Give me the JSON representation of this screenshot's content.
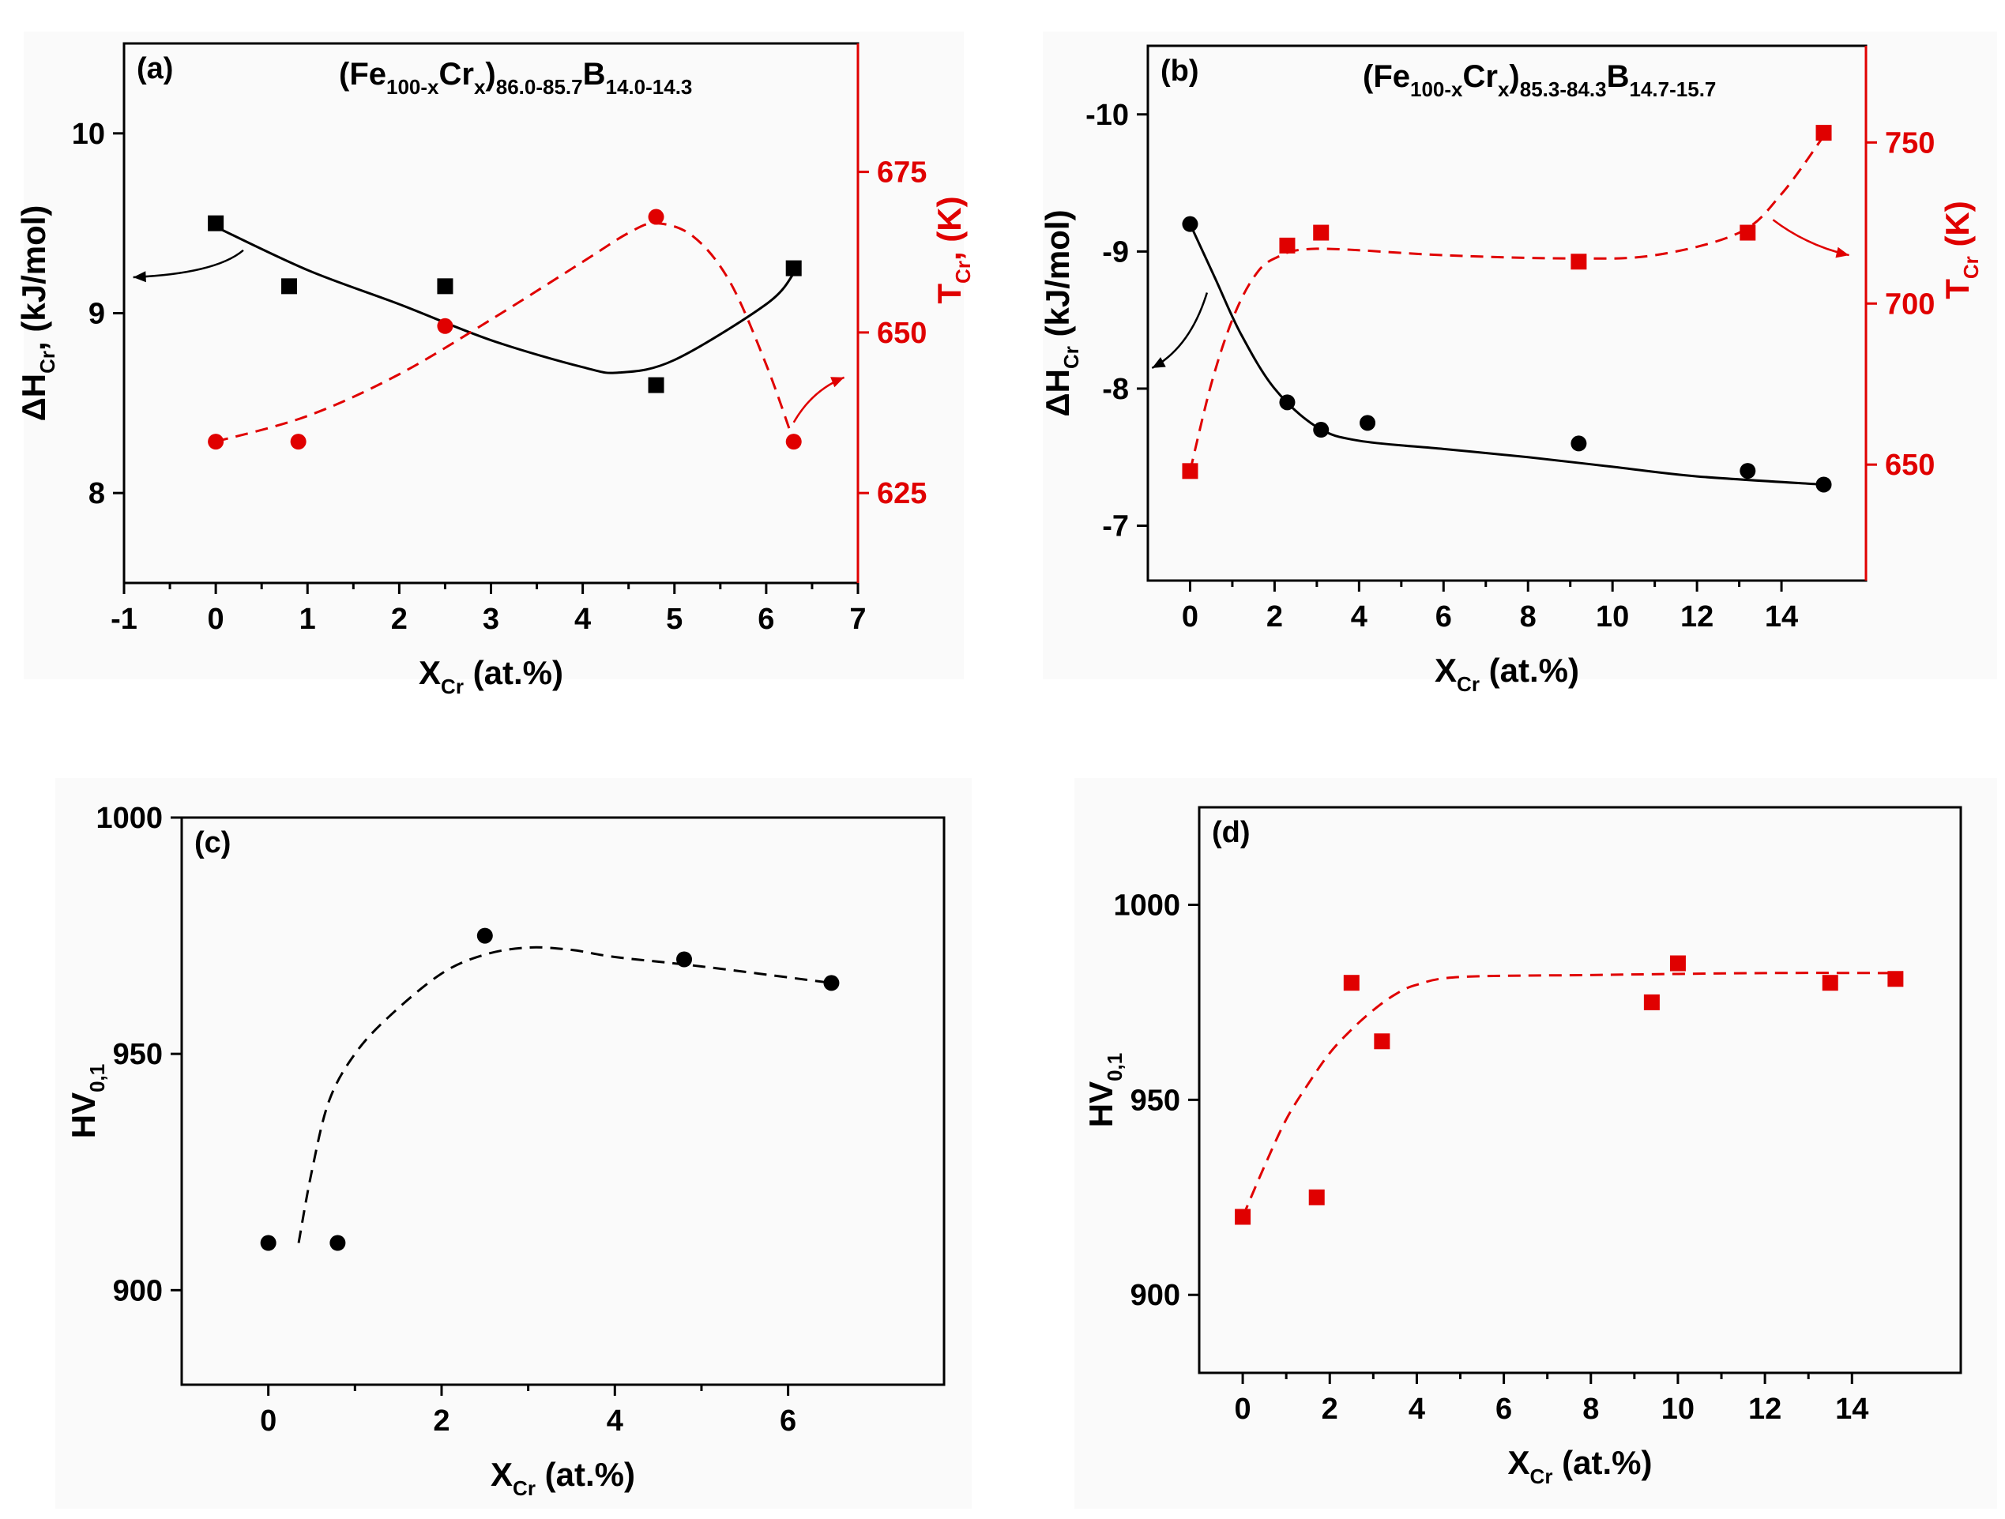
{
  "figure_label": "Four-panel figure: mixing enthalpy, Curie temperature and microhardness versus Cr content",
  "chart_data": [
    {
      "id": "a",
      "type": "scatter",
      "panel_label": "(a)",
      "formula": {
        "base": "(Fe",
        "sub1": "100-x",
        "el": "Cr",
        "sub2": "x",
        "close": ")",
        "sub3": "86.0-85.7",
        "b": "B",
        "sub4": "14.0-14.3"
      },
      "xlabel": "X",
      "xlabel_sub": "Cr",
      "xlabel_unit": " (at.%)",
      "xlim": [
        -1,
        7
      ],
      "xticks": [
        -1,
        0,
        1,
        2,
        3,
        4,
        5,
        6,
        7
      ],
      "ylim": [
        7.5,
        10.5
      ],
      "yticks": [
        8,
        9,
        10
      ],
      "ylabel": "ΔH",
      "ylabel_sub": "Cr",
      "ylabel_unit": ", (kJ/mol)",
      "y2lim": [
        611,
        695
      ],
      "y2ticks": [
        625,
        650,
        675
      ],
      "y2label": "T",
      "y2label_sub": "Cr",
      "y2label_unit": ", (K)",
      "series": [
        {
          "name": "ΔH_Cr",
          "axis": "left",
          "color": "#000000",
          "marker": "square",
          "x": [
            0,
            0.8,
            2.5,
            4.8,
            6.3
          ],
          "y": [
            9.5,
            9.15,
            9.15,
            8.6,
            9.25
          ],
          "fit": {
            "style": "solid",
            "x": [
              0,
              1,
              2,
              3,
              4,
              4.4,
              5,
              6,
              6.3
            ],
            "y": [
              9.48,
              9.24,
              9.05,
              8.85,
              8.7,
              8.67,
              8.74,
              9.05,
              9.22
            ]
          }
        },
        {
          "name": "T_Cr",
          "axis": "right",
          "color": "#e00000",
          "marker": "circle",
          "x": [
            0,
            0.9,
            2.5,
            4.8,
            6.3
          ],
          "y": [
            633,
            633,
            651,
            668,
            633
          ],
          "fit": {
            "style": "dashed",
            "x": [
              0,
              1,
              2,
              3,
              4,
              4.5,
              4.8,
              5.2,
              5.6,
              6,
              6.3
            ],
            "y": [
              633,
              637,
              643.5,
              652,
              661,
              665.5,
              667,
              665,
              658,
              645,
              633
            ]
          }
        }
      ],
      "arrows": [
        {
          "points": [
            [
              0.3,
              9.35
            ],
            [
              0.0,
              9.22
            ],
            [
              -0.9,
              9.2
            ]
          ],
          "axis": "left",
          "color": "#000000"
        },
        {
          "points": [
            [
              6.3,
              636
            ],
            [
              6.5,
              641
            ],
            [
              6.85,
              643
            ]
          ],
          "axis": "right",
          "color": "#e00000"
        }
      ]
    },
    {
      "id": "b",
      "type": "scatter",
      "panel_label": "(b)",
      "formula": {
        "base": "(Fe",
        "sub1": "100-x",
        "el": "Cr",
        "sub2": "x",
        "close": ")",
        "sub3": "85.3-84.3",
        "b": "B",
        "sub4": "14.7-15.7"
      },
      "xlabel": "X",
      "xlabel_sub": "Cr",
      "xlabel_unit": " (at.%)",
      "xlim": [
        -1,
        16
      ],
      "xticks": [
        0,
        2,
        4,
        6,
        8,
        10,
        12,
        14
      ],
      "ylim": [
        -6.6,
        -10.5
      ],
      "yticks": [
        -7,
        -8,
        -9,
        -10
      ],
      "ylabel": "ΔH",
      "ylabel_sub": "Cr",
      "ylabel_unit": " (kJ/mol)",
      "y2lim": [
        614,
        780
      ],
      "y2ticks": [
        650,
        700,
        750
      ],
      "y2label": "T",
      "y2label_sub": "Cr",
      "y2label_unit": " (K)",
      "series": [
        {
          "name": "ΔH_Cr",
          "axis": "left",
          "color": "#000000",
          "marker": "circle",
          "x": [
            0,
            2.3,
            3.1,
            4.2,
            9.2,
            13.2,
            15
          ],
          "y": [
            -9.2,
            -7.9,
            -7.7,
            -7.75,
            -7.6,
            -7.4,
            -7.3
          ],
          "fit": {
            "style": "solid",
            "x": [
              0,
              0.6,
              1.2,
              2,
              3,
              4,
              6,
              8,
              10,
              12,
              15
            ],
            "y": [
              -9.2,
              -8.8,
              -8.4,
              -8.0,
              -7.72,
              -7.62,
              -7.56,
              -7.5,
              -7.43,
              -7.36,
              -7.3
            ]
          }
        },
        {
          "name": "T_Cr",
          "axis": "right",
          "color": "#e00000",
          "marker": "square",
          "x": [
            0,
            2.3,
            3.1,
            9.2,
            13.2,
            15
          ],
          "y": [
            648,
            718,
            722,
            713,
            722,
            753
          ],
          "fit": {
            "style": "dashed",
            "x": [
              0,
              0.5,
              1,
              1.5,
              2,
              3,
              6,
              9,
              11,
              13,
              14,
              15
            ],
            "y": [
              648,
              675,
              695,
              708,
              714,
              717,
              715,
              714,
              715,
              722,
              734,
              752
            ]
          }
        }
      ],
      "arrows": [
        {
          "points": [
            [
              0.4,
              -8.7
            ],
            [
              0.0,
              -8.3
            ],
            [
              -0.9,
              -8.15
            ]
          ],
          "axis": "left",
          "color": "#000000"
        },
        {
          "points": [
            [
              13.8,
              726
            ],
            [
              14.6,
              718
            ],
            [
              15.6,
              715
            ]
          ],
          "axis": "right",
          "color": "#e00000"
        }
      ]
    },
    {
      "id": "c",
      "type": "scatter",
      "panel_label": "(c)",
      "xlabel": "X",
      "xlabel_sub": "Cr",
      "xlabel_unit": " (at.%)",
      "xlim": [
        -1,
        7.8
      ],
      "xticks": [
        0,
        2,
        4,
        6
      ],
      "ylim": [
        880,
        1000
      ],
      "yticks": [
        900,
        950,
        1000
      ],
      "ylabel": "HV",
      "ylabel_sub": "0,1",
      "series": [
        {
          "name": "HV",
          "axis": "left",
          "color": "#000000",
          "marker": "circle",
          "x": [
            0,
            0.8,
            2.5,
            4.8,
            6.5
          ],
          "y": [
            910,
            910,
            975,
            970,
            965
          ],
          "fit": {
            "style": "dashed",
            "x": [
              0.35,
              0.5,
              0.7,
              1.0,
              1.4,
              2.0,
              2.5,
              3.0,
              3.5,
              4.0,
              5.0,
              6.5
            ],
            "y": [
              910,
              925,
              940,
              950,
              958,
              967,
              971,
              972.5,
              972,
              970.5,
              968.5,
              965
            ]
          }
        }
      ]
    },
    {
      "id": "d",
      "type": "scatter",
      "panel_label": "(d)",
      "xlabel": "X",
      "xlabel_sub": "Cr",
      "xlabel_unit": " (at.%)",
      "xlim": [
        -1,
        16.5
      ],
      "xticks": [
        0,
        2,
        4,
        6,
        8,
        10,
        12,
        14
      ],
      "ylim": [
        880,
        1025
      ],
      "yticks": [
        900,
        950,
        1000
      ],
      "ylabel": "HV",
      "ylabel_sub": "0,1",
      "series": [
        {
          "name": "HV",
          "axis": "left",
          "color": "#e00000",
          "marker": "square",
          "x": [
            0,
            1.7,
            2.5,
            3.2,
            9.4,
            10.0,
            13.5,
            15.0
          ],
          "y": [
            920,
            925,
            980,
            965,
            975,
            985,
            980,
            981
          ],
          "fit": {
            "style": "dashed",
            "x": [
              0,
              0.5,
              1,
              1.5,
              2,
              2.5,
              3,
              3.5,
              4,
              5,
              8,
              12,
              15
            ],
            "y": [
              920,
              933,
              945,
              954,
              962,
              968,
              973,
              977,
              979.5,
              981.5,
              982,
              982.5,
              982.5
            ]
          }
        }
      ]
    }
  ]
}
